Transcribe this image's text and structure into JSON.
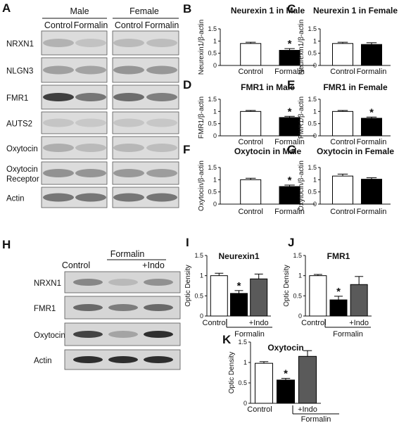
{
  "panel_letters": {
    "A": "A",
    "B": "B",
    "C": "C",
    "D": "D",
    "E": "E",
    "F": "F",
    "G": "G",
    "H": "H",
    "I": "I",
    "J": "J",
    "K": "K"
  },
  "blot_A": {
    "group_male": "Male",
    "group_female": "Female",
    "lane_labels": [
      "Control",
      "Formalin",
      "Control",
      "Formalin"
    ],
    "rows": [
      "NRXN1",
      "NLGN3",
      "FMR1",
      "AUTS2",
      "Oxytocin",
      "Oxytocin Receptor",
      "Actin"
    ],
    "row_label_lines": [
      [
        "NRXN1"
      ],
      [
        "NLGN3"
      ],
      [
        "FMR1"
      ],
      [
        "AUTS2"
      ],
      [
        "Oxytocin"
      ],
      [
        "Oxytocin",
        "Receptor"
      ],
      [
        "Actin"
      ]
    ]
  },
  "blot_H": {
    "lane_control": "Control",
    "group_formalin": "Formalin",
    "lane_indo": "+Indo",
    "rows": [
      "NRXN1",
      "FMR1",
      "Oxytocin",
      "Actin"
    ]
  },
  "colors": {
    "control": "#ffffff",
    "formalin": "#000000",
    "indo": "#5a5a5a",
    "axis": "#111111"
  },
  "chart_data": [
    {
      "id": "B",
      "type": "bar",
      "title": "Neurexin 1 in Male",
      "ylabel": "Neurexin1/β-actin",
      "ylim": [
        0,
        1.5
      ],
      "yticks": [
        0,
        0.5,
        1,
        1.5
      ],
      "categories": [
        "Control",
        "Formalin"
      ],
      "values": [
        0.9,
        0.62
      ],
      "errors": [
        0.05,
        0.07
      ],
      "bar_colors": [
        "control",
        "formalin"
      ],
      "sig": [
        false,
        true
      ],
      "star": "*"
    },
    {
      "id": "C",
      "type": "bar",
      "title": "Neurexin 1 in Female",
      "ylabel": "Neurexin1/β-actin",
      "ylim": [
        0,
        1.5
      ],
      "yticks": [
        0,
        0.5,
        1,
        1.5
      ],
      "categories": [
        "Control",
        "Formalin"
      ],
      "values": [
        0.9,
        0.86
      ],
      "errors": [
        0.05,
        0.07
      ],
      "bar_colors": [
        "control",
        "formalin"
      ],
      "sig": [
        false,
        false
      ],
      "star": "*"
    },
    {
      "id": "D",
      "type": "bar",
      "title": "FMR1 in Male",
      "ylabel": "FMR1/β-actin",
      "ylim": [
        0,
        1.5
      ],
      "yticks": [
        0,
        0.5,
        1,
        1.5
      ],
      "categories": [
        "Control",
        "Formalin"
      ],
      "values": [
        1.0,
        0.75
      ],
      "errors": [
        0.04,
        0.05
      ],
      "bar_colors": [
        "control",
        "formalin"
      ],
      "sig": [
        false,
        true
      ],
      "star": "*"
    },
    {
      "id": "E",
      "type": "bar",
      "title": "FMR1 in Female",
      "ylabel": "FMR1/β-actin",
      "ylim": [
        0,
        1.5
      ],
      "yticks": [
        0,
        0.5,
        1,
        1.5
      ],
      "categories": [
        "Control",
        "Formalin"
      ],
      "values": [
        1.0,
        0.72
      ],
      "errors": [
        0.04,
        0.05
      ],
      "bar_colors": [
        "control",
        "formalin"
      ],
      "sig": [
        false,
        true
      ],
      "star": "*"
    },
    {
      "id": "F",
      "type": "bar",
      "title": "Oxytocin in Male",
      "ylabel": "Oxytocin/β-actin",
      "ylim": [
        0,
        1.5
      ],
      "yticks": [
        0,
        0.5,
        1,
        1.5
      ],
      "categories": [
        "Control",
        "Formalin"
      ],
      "values": [
        1.0,
        0.72
      ],
      "errors": [
        0.06,
        0.06
      ],
      "bar_colors": [
        "control",
        "formalin"
      ],
      "sig": [
        false,
        true
      ],
      "star": "*"
    },
    {
      "id": "G",
      "type": "bar",
      "title": "Oxytocin in Female",
      "ylabel": "Oxytocin/β-actin",
      "ylim": [
        0,
        1.5
      ],
      "yticks": [
        0,
        0.5,
        1,
        1.5
      ],
      "categories": [
        "Control",
        "Formalin"
      ],
      "values": [
        1.15,
        1.02
      ],
      "errors": [
        0.08,
        0.06
      ],
      "bar_colors": [
        "control",
        "formalin"
      ],
      "sig": [
        false,
        false
      ],
      "star": "*"
    },
    {
      "id": "I",
      "type": "bar",
      "title": "Neurexin1",
      "ylabel": "Optic Density",
      "ylim": [
        0,
        1.5
      ],
      "yticks": [
        0,
        0.5,
        1,
        1.5
      ],
      "categories": [
        "Control",
        "",
        "+Indo"
      ],
      "group_label": "Formalin",
      "values": [
        1.0,
        0.56,
        0.92
      ],
      "errors": [
        0.06,
        0.07,
        0.12
      ],
      "bar_colors": [
        "control",
        "formalin",
        "indo"
      ],
      "sig": [
        false,
        true,
        false
      ],
      "star": "*"
    },
    {
      "id": "J",
      "type": "bar",
      "title": "FMR1",
      "ylabel": "Optic Density",
      "ylim": [
        0,
        1.5
      ],
      "yticks": [
        0,
        0.5,
        1,
        1.5
      ],
      "categories": [
        "Control",
        "",
        "+Indo"
      ],
      "group_label": "Formalin",
      "values": [
        1.0,
        0.4,
        0.78
      ],
      "errors": [
        0.03,
        0.09,
        0.2
      ],
      "bar_colors": [
        "control",
        "formalin",
        "indo"
      ],
      "sig": [
        false,
        true,
        false
      ],
      "star": "*"
    },
    {
      "id": "K",
      "type": "bar",
      "title": "Oxytocin",
      "ylabel": "Optic Density",
      "ylim": [
        0,
        1.5
      ],
      "yticks": [
        0,
        0.5,
        1,
        1.5
      ],
      "categories": [
        "Control",
        "",
        "+Indo"
      ],
      "group_label": "Formalin",
      "values": [
        0.98,
        0.57,
        1.15
      ],
      "errors": [
        0.04,
        0.04,
        0.14
      ],
      "bar_colors": [
        "control",
        "formalin",
        "indo"
      ],
      "sig": [
        false,
        true,
        false
      ],
      "star": "*"
    }
  ]
}
